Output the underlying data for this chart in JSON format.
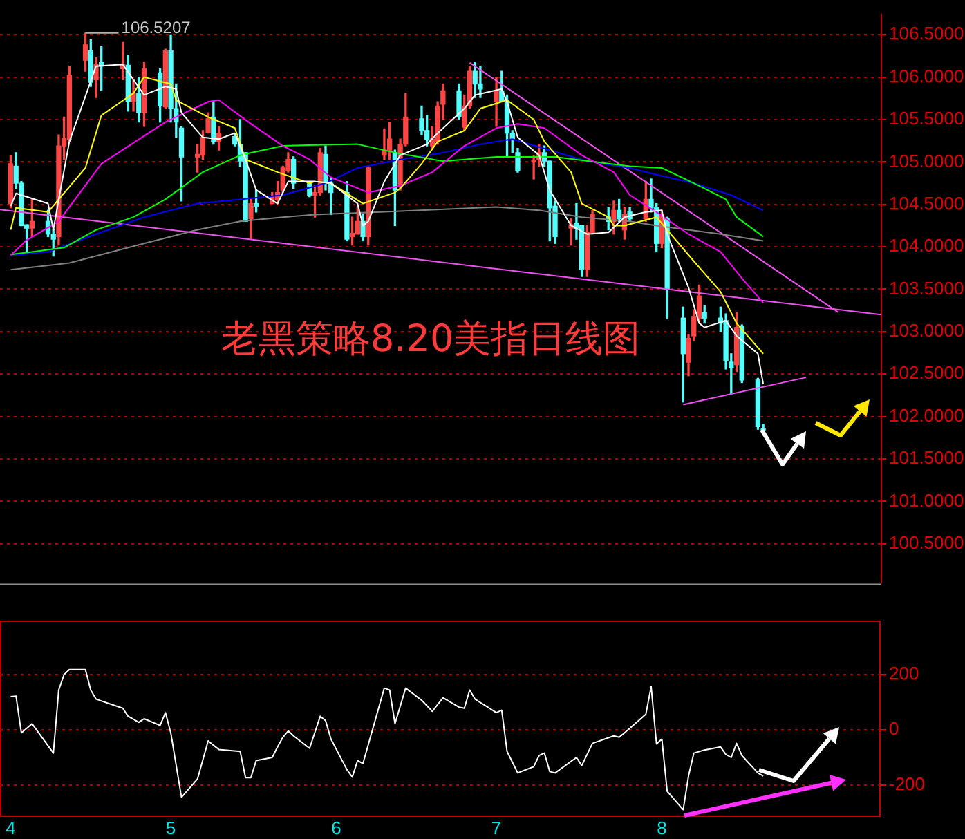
{
  "chart_data": [
    {
      "type": "candlestick",
      "title": "老黑策略8.20美指日线图",
      "x": [
        "--04-01",
        "--04-02",
        "--04-03",
        "--04-04",
        "--04-05",
        "--04-08",
        "--04-09",
        "--04-10",
        "--04-11",
        "--04-12",
        "--04-15",
        "--04-16",
        "--04-17",
        "--04-18",
        "--04-22",
        "--04-23",
        "--04-24",
        "--04-25",
        "--04-26",
        "--04-29",
        "--04-30",
        "--05-01",
        "--05-02",
        "--05-03",
        "--05-06",
        "--05-07",
        "--05-08",
        "--05-09",
        "--05-10",
        "--05-13",
        "--05-14",
        "--05-15",
        "--05-16",
        "--05-17",
        "--05-20",
        "--05-21",
        "--05-22",
        "--05-23",
        "--05-24",
        "--05-27",
        "--05-28",
        "--05-29",
        "--05-30",
        "--05-31",
        "--06-03",
        "--06-04",
        "--06-05",
        "--06-06",
        "--06-07",
        "--06-10",
        "--06-11",
        "--06-12",
        "--06-13",
        "--06-14",
        "--06-17",
        "--06-18",
        "--06-19",
        "--06-20",
        "--06-21",
        "--06-24",
        "--06-25",
        "--06-26",
        "--06-27",
        "--06-28",
        "--07-01",
        "--07-02",
        "--07-03",
        "--07-04",
        "--07-05",
        "--07-08",
        "--07-09",
        "--07-10",
        "--07-11",
        "--07-12",
        "--07-15",
        "--07-16",
        "--07-17",
        "--07-18",
        "--07-19",
        "--07-22",
        "--07-23",
        "--07-24",
        "--07-25",
        "--07-26",
        "--07-29",
        "--07-30",
        "--07-31",
        "--08-01",
        "--08-02",
        "--08-05",
        "--08-06",
        "--08-07",
        "--08-08",
        "--08-09",
        "--08-12",
        "--08-13",
        "--08-14",
        "--08-15",
        "--08-16",
        "--08-19",
        "--08-20"
      ],
      "ohlc": [
        [
          104.51,
          105.08,
          104.46,
          104.98
        ],
        [
          104.95,
          105.11,
          104.69,
          104.75
        ],
        [
          104.75,
          104.77,
          104.25,
          104.25
        ],
        [
          104.26,
          104.26,
          103.94,
          104.22
        ],
        [
          104.22,
          104.56,
          104.12,
          104.3
        ],
        [
          104.3,
          104.43,
          104.12,
          104.15
        ],
        [
          104.15,
          104.2,
          103.89,
          104.09
        ],
        [
          104.12,
          105.32,
          104.02,
          105.19
        ],
        [
          105.19,
          105.53,
          105.03,
          105.28
        ],
        [
          105.27,
          106.13,
          105.24,
          106.02
        ],
        [
          106.2,
          106.52,
          106.07,
          106.38
        ],
        [
          106.31,
          106.44,
          105.89,
          105.94
        ],
        [
          105.97,
          106.23,
          105.76,
          106.15
        ],
        [
          106.18,
          106.36,
          105.84,
          106.13
        ],
        [
          106.1,
          106.41,
          105.97,
          106.15
        ],
        [
          106.14,
          106.26,
          105.6,
          105.71
        ],
        [
          105.71,
          105.97,
          105.6,
          105.81
        ],
        [
          105.81,
          106.0,
          105.47,
          105.58
        ],
        [
          105.58,
          106.18,
          105.42,
          106.1
        ],
        [
          106.05,
          106.1,
          105.47,
          105.66
        ],
        [
          105.65,
          106.33,
          105.63,
          106.31
        ],
        [
          106.31,
          106.5,
          105.47,
          105.63
        ],
        [
          105.63,
          105.92,
          105.29,
          105.47
        ],
        [
          105.4,
          105.42,
          104.54,
          105.06
        ],
        [
          105.06,
          105.21,
          104.88,
          105.09
        ],
        [
          105.08,
          105.37,
          105.03,
          105.29
        ],
        [
          105.35,
          105.58,
          105.34,
          105.51
        ],
        [
          105.53,
          105.73,
          105.21,
          105.24
        ],
        [
          105.24,
          105.42,
          105.14,
          105.34
        ],
        [
          105.3,
          105.34,
          105.19,
          105.21
        ],
        [
          105.21,
          105.5,
          104.95,
          105.01
        ],
        [
          105.11,
          105.11,
          104.3,
          104.3
        ],
        [
          104.33,
          104.56,
          104.09,
          104.51
        ],
        [
          104.51,
          104.67,
          104.41,
          104.48
        ],
        [
          104.51,
          104.64,
          104.51,
          104.59
        ],
        [
          104.56,
          104.77,
          104.51,
          104.64
        ],
        [
          104.67,
          104.95,
          104.64,
          104.93
        ],
        [
          104.9,
          105.11,
          104.88,
          105.03
        ],
        [
          105.03,
          105.06,
          104.69,
          104.75
        ],
        [
          104.75,
          104.77,
          104.59,
          104.61
        ],
        [
          104.61,
          104.72,
          104.35,
          104.64
        ],
        [
          104.64,
          105.16,
          104.61,
          105.11
        ],
        [
          105.09,
          105.19,
          104.67,
          104.75
        ],
        [
          104.75,
          104.82,
          104.38,
          104.64
        ],
        [
          104.64,
          104.77,
          104.07,
          104.09
        ],
        [
          104.12,
          104.35,
          104.02,
          104.16
        ],
        [
          104.15,
          104.46,
          104.15,
          104.3
        ],
        [
          104.3,
          104.38,
          104.07,
          104.12
        ],
        [
          104.12,
          104.95,
          104.02,
          104.93
        ],
        [
          105.08,
          105.39,
          105.03,
          105.14
        ],
        [
          105.14,
          105.47,
          105.03,
          105.27
        ],
        [
          105.11,
          105.14,
          104.25,
          104.67
        ],
        [
          104.72,
          105.27,
          104.67,
          105.21
        ],
        [
          105.21,
          105.81,
          105.19,
          105.53
        ],
        [
          105.51,
          105.66,
          105.32,
          105.37
        ],
        [
          105.37,
          105.55,
          105.19,
          105.27
        ],
        [
          105.19,
          105.42,
          105.16,
          105.27
        ],
        [
          105.24,
          105.71,
          105.21,
          105.66
        ],
        [
          105.68,
          105.92,
          105.5,
          105.84
        ],
        [
          105.84,
          105.92,
          105.5,
          105.53
        ],
        [
          105.41,
          105.79,
          105.37,
          105.66
        ],
        [
          105.66,
          106.13,
          105.63,
          106.07
        ],
        [
          106.07,
          106.18,
          105.76,
          105.92
        ],
        [
          105.92,
          106.13,
          105.76,
          105.86
        ],
        [
          105.71,
          106.0,
          105.42,
          105.84
        ],
        [
          105.84,
          106.07,
          105.71,
          105.71
        ],
        [
          105.71,
          105.79,
          105.06,
          105.34
        ],
        [
          105.34,
          105.37,
          105.11,
          105.27
        ],
        [
          105.11,
          105.16,
          104.88,
          104.9
        ],
        [
          105.0,
          105.08,
          104.8,
          105.02
        ],
        [
          105.03,
          105.21,
          104.95,
          105.11
        ],
        [
          105.11,
          105.19,
          104.95,
          105.01
        ],
        [
          105.01,
          105.01,
          104.07,
          104.46
        ],
        [
          104.48,
          104.54,
          104.04,
          104.12
        ],
        [
          104.22,
          104.33,
          104.02,
          104.26
        ],
        [
          104.28,
          104.51,
          104.09,
          104.22
        ],
        [
          104.25,
          104.25,
          103.65,
          103.73
        ],
        [
          103.73,
          104.25,
          103.65,
          104.17
        ],
        [
          104.17,
          104.43,
          104.15,
          104.38
        ],
        [
          104.35,
          104.46,
          104.2,
          104.3
        ],
        [
          104.3,
          104.54,
          104.15,
          104.43
        ],
        [
          104.43,
          104.56,
          104.3,
          104.33
        ],
        [
          104.2,
          104.46,
          104.09,
          104.38
        ],
        [
          104.41,
          104.46,
          104.3,
          104.33
        ],
        [
          104.33,
          104.77,
          104.3,
          104.56
        ],
        [
          104.56,
          104.8,
          104.41,
          104.46
        ],
        [
          104.46,
          104.51,
          103.94,
          104.04
        ],
        [
          104.04,
          104.43,
          103.99,
          104.38
        ],
        [
          104.33,
          104.35,
          103.16,
          103.5
        ],
        [
          103.16,
          103.29,
          102.17,
          102.74
        ],
        [
          102.64,
          102.97,
          102.48,
          102.92
        ],
        [
          102.95,
          103.26,
          102.9,
          103.18
        ],
        [
          103.16,
          103.55,
          103.1,
          103.42
        ],
        [
          103.23,
          103.31,
          103.1,
          103.16
        ],
        [
          103.16,
          103.29,
          103.0,
          103.1
        ],
        [
          103.13,
          103.21,
          102.56,
          102.66
        ],
        [
          102.64,
          102.74,
          102.27,
          102.58
        ],
        [
          102.61,
          103.23,
          102.53,
          103.05
        ],
        [
          103.06,
          103.08,
          102.4,
          102.43
        ],
        [
          102.43,
          102.45,
          101.85,
          101.88
        ],
        [
          101.85,
          101.91,
          101.78,
          101.84
        ]
      ],
      "colors": [
        "#ff4444",
        "#54ffff",
        "#54ffff",
        "#54ffff",
        "#ff4444",
        "#54ffff",
        "#54ffff",
        "#ff4444",
        "#ff4444",
        "#ff4444",
        "#ff4444",
        "#54ffff",
        "#ff4444",
        "#54ffff",
        "#ff4444",
        "#54ffff",
        "#ff4444",
        "#54ffff",
        "#ff4444",
        "#54ffff",
        "#ff4444",
        "#54ffff",
        "#54ffff",
        "#54ffff",
        "#ff4444",
        "#ff4444",
        "#ff4444",
        "#54ffff",
        "#ff4444",
        "#54ffff",
        "#54ffff",
        "#54ffff",
        "#ff4444",
        "#54ffff",
        "#ff4444",
        "#ff4444",
        "#ff4444",
        "#ff4444",
        "#54ffff",
        "#54ffff",
        "#ff4444",
        "#ff4444",
        "#54ffff",
        "#54ffff",
        "#54ffff",
        "#ff4444",
        "#ff4444",
        "#54ffff",
        "#ff4444",
        "#ff4444",
        "#ff4444",
        "#54ffff",
        "#ff4444",
        "#ff4444",
        "#54ffff",
        "#54ffff",
        "#ff4444",
        "#ff4444",
        "#ff4444",
        "#54ffff",
        "#ff4444",
        "#ff4444",
        "#54ffff",
        "#54ffff",
        "#ff4444",
        "#54ffff",
        "#54ffff",
        "#54ffff",
        "#54ffff",
        "#ff4444",
        "#ff4444",
        "#54ffff",
        "#54ffff",
        "#54ffff",
        "#ff4444",
        "#54ffff",
        "#54ffff",
        "#ff4444",
        "#ff4444",
        "#54ffff",
        "#ff4444",
        "#54ffff",
        "#ff4444",
        "#54ffff",
        "#ff4444",
        "#54ffff",
        "#54ffff",
        "#ff4444",
        "#54ffff",
        "#54ffff",
        "#ff4444",
        "#ff4444",
        "#ff4444",
        "#54ffff",
        "#54ffff",
        "#54ffff",
        "#54ffff",
        "#ff4444",
        "#54ffff",
        "#54ffff",
        "#54ffff"
      ],
      "series": [
        {
          "type": "line",
          "color": "#ffffff",
          "x": [
            "--04-01",
            "--04-02",
            "--04-08",
            "--04-09",
            "--04-10",
            "--04-12",
            "--04-17",
            "--04-22",
            "--04-24",
            "--04-26",
            "--04-30",
            "--05-02",
            "--05-03",
            "--05-07",
            "--05-10",
            "--05-13",
            "--05-15",
            "--05-17",
            "--05-21",
            "--05-23",
            "--05-28",
            "--05-31",
            "--06-05",
            "--06-06",
            "--06-07",
            "--06-10",
            "--06-13",
            "--06-18",
            "--06-20",
            "--06-25",
            "--06-27",
            "--07-02",
            "--07-03",
            "--07-05",
            "--07-09",
            "--07-11",
            "--07-15",
            "--07-18",
            "--07-22",
            "--07-25",
            "--07-29",
            "--08-01",
            "--08-02",
            "--08-06",
            "--08-08",
            "--08-09",
            "--08-13",
            "--08-15",
            "--08-19",
            "--08-20"
          ],
          "values": [
            104.48,
            104.63,
            104.51,
            104.2,
            104.56,
            105.24,
            106.13,
            106.15,
            105.97,
            105.79,
            105.89,
            105.86,
            105.58,
            105.29,
            105.27,
            105.34,
            105.03,
            104.67,
            104.51,
            104.77,
            104.77,
            104.75,
            104.51,
            104.25,
            104.3,
            104.77,
            105.08,
            105.21,
            105.34,
            105.63,
            105.79,
            105.86,
            105.71,
            105.29,
            105.08,
            104.67,
            104.25,
            104.15,
            104.17,
            104.35,
            104.41,
            104.43,
            104.15,
            103.52,
            103.1,
            103.05,
            103.13,
            102.95,
            102.74,
            102.38
          ]
        },
        {
          "type": "line",
          "color": "#ffff00",
          "x": [
            "--04-01",
            "--04-02",
            "--04-08",
            "--04-10",
            "--04-15",
            "--04-18",
            "--04-24",
            "--04-26",
            "--05-01",
            "--05-02",
            "--05-08",
            "--05-13",
            "--05-15",
            "--05-21",
            "--05-27",
            "--05-28",
            "--05-31",
            "--06-06",
            "--06-12",
            "--06-13",
            "--06-17",
            "--06-20",
            "--06-25",
            "--06-28",
            "--07-03",
            "--07-08",
            "--07-10",
            "--07-15",
            "--07-17",
            "--07-22",
            "--07-23",
            "--07-25",
            "--07-31",
            "--08-02",
            "--08-07",
            "--08-12",
            "--08-15",
            "--08-20"
          ],
          "values": [
            104.2,
            104.46,
            104.41,
            104.56,
            104.93,
            105.55,
            105.81,
            106.0,
            105.92,
            105.73,
            105.53,
            105.4,
            105.03,
            104.88,
            104.75,
            104.77,
            104.75,
            104.51,
            104.64,
            104.69,
            104.98,
            105.24,
            105.37,
            105.63,
            105.73,
            105.5,
            105.24,
            104.88,
            104.51,
            104.35,
            104.25,
            104.25,
            104.35,
            104.2,
            103.83,
            103.47,
            103.1,
            102.74
          ]
        },
        {
          "type": "line",
          "color": "#ff00ff",
          "x": [
            "--04-01",
            "--04-04",
            "--04-10",
            "--04-18",
            "--04-30",
            "--05-08",
            "--05-10",
            "--05-16",
            "--05-22",
            "--05-27",
            "--05-31",
            "--06-07",
            "--06-13",
            "--06-19",
            "--06-25",
            "--07-01",
            "--07-05",
            "--07-10",
            "--07-17",
            "--07-23",
            "--07-26",
            "--07-31",
            "--08-06",
            "--08-12",
            "--08-16",
            "--08-20"
          ],
          "values": [
            103.9,
            104.08,
            104.3,
            104.98,
            105.47,
            105.71,
            105.73,
            105.45,
            105.19,
            105.03,
            104.82,
            104.64,
            104.72,
            104.88,
            105.19,
            105.4,
            105.45,
            105.4,
            105.08,
            104.88,
            104.61,
            104.41,
            104.15,
            103.94,
            103.63,
            103.34
          ]
        },
        {
          "type": "line",
          "color": "#00ff00",
          "x": [
            "--04-01",
            "--04-05",
            "--04-11",
            "--04-17",
            "--04-24",
            "--04-30",
            "--05-07",
            "--05-14",
            "--05-22",
            "--05-28",
            "--06-05",
            "--06-12",
            "--06-21",
            "--07-01",
            "--07-12",
            "--07-22",
            "--07-26",
            "--08-01",
            "--08-07",
            "--08-13",
            "--08-15",
            "--08-20"
          ],
          "values": [
            103.91,
            103.94,
            103.99,
            104.2,
            104.35,
            104.56,
            104.88,
            105.08,
            105.19,
            105.2,
            105.21,
            105.11,
            105.01,
            105.06,
            105.06,
            104.98,
            104.95,
            104.93,
            104.75,
            104.56,
            104.35,
            104.12
          ]
        },
        {
          "type": "line",
          "color": "#0000ff",
          "x": [
            "--04-01",
            "--04-08",
            "--04-17",
            "--04-26",
            "--05-06",
            "--05-14",
            "--05-22",
            "--05-30",
            "--06-05",
            "--06-13",
            "--06-21",
            "--06-28",
            "--07-04",
            "--07-11",
            "--07-18",
            "--07-26",
            "--07-31",
            "--08-07",
            "--08-14",
            "--08-20"
          ],
          "values": [
            103.9,
            103.94,
            104.15,
            104.35,
            104.51,
            104.56,
            104.61,
            104.75,
            104.93,
            105.03,
            105.11,
            105.21,
            105.27,
            105.14,
            105.01,
            104.93,
            104.85,
            104.75,
            104.61,
            104.43
          ]
        },
        {
          "type": "line",
          "color": "#808080",
          "x": [
            "--04-01",
            "--04-12",
            "--04-26",
            "--05-06",
            "--05-14",
            "--05-22",
            "--05-28",
            "--06-13",
            "--07-01",
            "--07-09",
            "--07-17",
            "--07-26",
            "--07-31",
            "--08-12",
            "--08-20"
          ],
          "values": [
            103.73,
            103.81,
            104.04,
            104.2,
            104.3,
            104.35,
            104.38,
            104.42,
            104.47,
            104.43,
            104.35,
            104.3,
            104.25,
            104.15,
            104.07
          ]
        },
        {
          "type": "line",
          "color": "#f050f0",
          "x": [
            "--03-30",
            "--09-11"
          ],
          "values": [
            104.44,
            103.2
          ]
        },
        {
          "type": "line",
          "color": "#f050f0",
          "x": [
            "--06-26",
            "--09-03"
          ],
          "values": [
            106.17,
            103.23
          ]
        },
        {
          "type": "line",
          "color": "#f050f0",
          "x": [
            "--08-05",
            "--08-28"
          ],
          "values": [
            102.14,
            102.46
          ]
        }
      ],
      "xlim": [
        "--03-30",
        "--09-11"
      ],
      "ylim": [
        100.03,
        106.75
      ],
      "yticks": [
        {
          "value": 100.5,
          "label": "100.5000"
        },
        {
          "value": 101,
          "label": "101.0000"
        },
        {
          "value": 101.5,
          "label": "101.5000"
        },
        {
          "value": 102,
          "label": "102.0000"
        },
        {
          "value": 102.5,
          "label": "102.5000"
        },
        {
          "value": 103,
          "label": "103.0000"
        },
        {
          "value": 103.5,
          "label": "103.5000"
        },
        {
          "value": 104,
          "label": "104.0000"
        },
        {
          "value": 104.5,
          "label": "104.5000"
        },
        {
          "value": 105,
          "label": "105.0000"
        },
        {
          "value": 105.5,
          "label": "105.5000"
        },
        {
          "value": 106,
          "label": "106.0000"
        },
        {
          "value": 106.5,
          "label": "106.5000"
        }
      ],
      "tick_labels": "y",
      "grid": "y",
      "annotations": [
        {
          "text": "106.5207",
          "x": "--04-15",
          "y": 106.52
        }
      ]
    },
    {
      "type": "line",
      "color": "#ffffff",
      "x": [
        "--04-01",
        "--04-02",
        "--04-03",
        "--04-05",
        "--04-09",
        "--04-10",
        "--04-11",
        "--04-12",
        "--04-15",
        "--04-16",
        "--04-17",
        "--04-22",
        "--04-23",
        "--04-25",
        "--04-26",
        "--04-29",
        "--04-30",
        "--05-01",
        "--05-03",
        "--05-06",
        "--05-08",
        "--05-09",
        "--05-10",
        "--05-14",
        "--05-15",
        "--05-16",
        "--05-17",
        "--05-20",
        "--05-21",
        "--05-22",
        "--05-23",
        "--05-24",
        "--05-27",
        "--05-29",
        "--05-30",
        "--05-31",
        "--06-03",
        "--06-04",
        "--06-05",
        "--06-06",
        "--06-10",
        "--06-11",
        "--06-12",
        "--06-14",
        "--06-17",
        "--06-19",
        "--06-21",
        "--06-24",
        "--06-25",
        "--06-26",
        "--06-27",
        "--07-01",
        "--07-02",
        "--07-03",
        "--07-05",
        "--07-08",
        "--07-09",
        "--07-10",
        "--07-11",
        "--07-12",
        "--07-16",
        "--07-17",
        "--07-19",
        "--07-23",
        "--07-24",
        "--07-25",
        "--07-29",
        "--07-30",
        "--07-31",
        "--08-01",
        "--08-02",
        "--08-05",
        "--08-06",
        "--08-07",
        "--08-09",
        "--08-12",
        "--08-13",
        "--08-14",
        "--08-15",
        "--08-16",
        "--08-19",
        "--08-20"
      ],
      "values": [
        120,
        122,
        -11,
        22,
        -84,
        144,
        200,
        218,
        218,
        144,
        111,
        78,
        49,
        27,
        40,
        16,
        62,
        -11,
        -244,
        -178,
        -40,
        -56,
        -71,
        -78,
        -173,
        -173,
        -111,
        -100,
        -62,
        -27,
        -4,
        -22,
        -67,
        49,
        33,
        -33,
        -144,
        -171,
        -111,
        -122,
        151,
        144,
        22,
        151,
        107,
        67,
        116,
        82,
        78,
        144,
        111,
        62,
        71,
        -78,
        -156,
        -133,
        -93,
        -84,
        -151,
        -156,
        -100,
        -129,
        -49,
        -22,
        -27,
        -11,
        56,
        156,
        -51,
        -33,
        -222,
        -289,
        -167,
        -84,
        -73,
        -62,
        -89,
        -100,
        -49,
        -93,
        -156,
        -167
      ],
      "xlim": [
        "--03-30",
        "--09-11"
      ],
      "ylim": [
        -310,
        395
      ],
      "xticks": [
        {
          "value": "--04-01",
          "label": "4"
        },
        {
          "value": "--05-01",
          "label": "5"
        },
        {
          "value": "--06-01",
          "label": "6"
        },
        {
          "value": "--07-01",
          "label": "7"
        },
        {
          "value": "--08-01",
          "label": "8"
        }
      ],
      "yticks": [
        -200,
        0,
        200
      ],
      "grid": "y"
    }
  ]
}
